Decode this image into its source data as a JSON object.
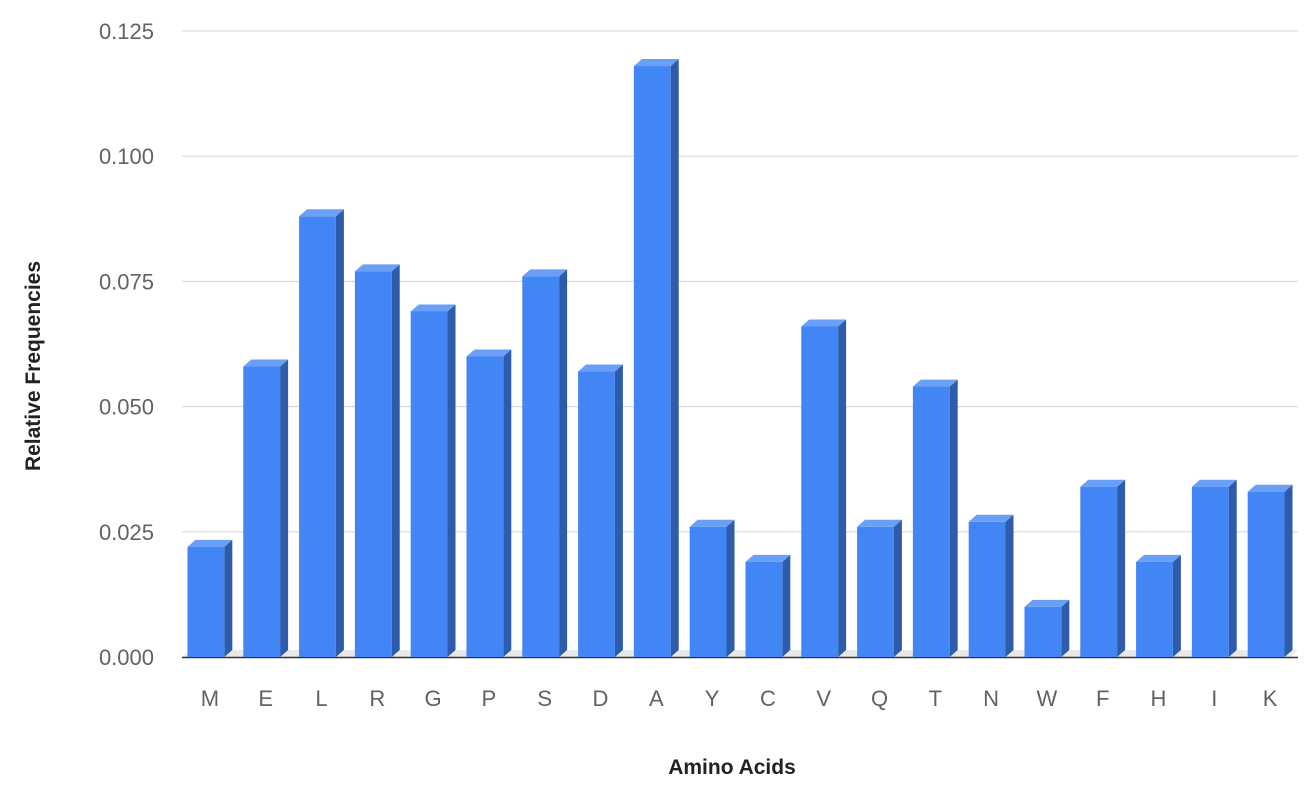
{
  "chart_data": {
    "type": "bar",
    "style": "3d",
    "title": "",
    "xlabel": "Amino Acids",
    "ylabel": "Relative Frequencies",
    "ylim": [
      0,
      0.125
    ],
    "yticks": [
      "0.000",
      "0.025",
      "0.050",
      "0.075",
      "0.100",
      "0.125"
    ],
    "ytick_values": [
      0,
      0.025,
      0.05,
      0.075,
      0.1,
      0.125
    ],
    "grid": true,
    "legend": "none",
    "categories": [
      "M",
      "E",
      "L",
      "R",
      "G",
      "P",
      "S",
      "D",
      "A",
      "Y",
      "C",
      "V",
      "Q",
      "T",
      "N",
      "W",
      "F",
      "H",
      "I",
      "K"
    ],
    "values": [
      0.022,
      0.058,
      0.088,
      0.077,
      0.069,
      0.06,
      0.076,
      0.057,
      0.118,
      0.026,
      0.019,
      0.066,
      0.026,
      0.054,
      0.027,
      0.01,
      0.034,
      0.019,
      0.034,
      0.033
    ],
    "colors": {
      "bar_front": "#4285f4",
      "bar_top": "#6a9ff7",
      "bar_side": "#2e5cab",
      "gridline": "#d9d9d9",
      "floor": "#e8e8e8",
      "axis_line": "#333333"
    }
  }
}
